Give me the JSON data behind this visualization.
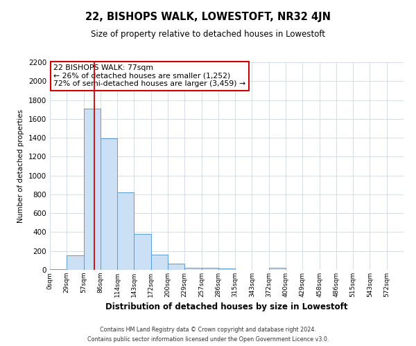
{
  "title": "22, BISHOPS WALK, LOWESTOFT, NR32 4JN",
  "subtitle": "Size of property relative to detached houses in Lowestoft",
  "xlabel": "Distribution of detached houses by size in Lowestoft",
  "ylabel": "Number of detached properties",
  "bin_labels": [
    "0sqm",
    "29sqm",
    "57sqm",
    "86sqm",
    "114sqm",
    "143sqm",
    "172sqm",
    "200sqm",
    "229sqm",
    "257sqm",
    "286sqm",
    "315sqm",
    "343sqm",
    "372sqm",
    "400sqm",
    "429sqm",
    "458sqm",
    "486sqm",
    "515sqm",
    "543sqm",
    "572sqm"
  ],
  "bar_heights": [
    10,
    155,
    1710,
    1390,
    820,
    385,
    160,
    65,
    25,
    20,
    18,
    0,
    0,
    20,
    0,
    0,
    0,
    0,
    0,
    0,
    0
  ],
  "bar_color": "#cce0f5",
  "bar_edge_color": "#5b9bd5",
  "vline_x": 77,
  "vline_color": "#cc0000",
  "ylim": [
    0,
    2200
  ],
  "yticks": [
    0,
    200,
    400,
    600,
    800,
    1000,
    1200,
    1400,
    1600,
    1800,
    2000,
    2200
  ],
  "annotation_title": "22 BISHOPS WALK: 77sqm",
  "annotation_line1": "← 26% of detached houses are smaller (1,252)",
  "annotation_line2": "72% of semi-detached houses are larger (3,459) →",
  "annotation_box_color": "#ffffff",
  "annotation_box_edge": "#cc0000",
  "footer_line1": "Contains HM Land Registry data © Crown copyright and database right 2024.",
  "footer_line2": "Contains public sector information licensed under the Open Government Licence v3.0.",
  "bin_width": 29,
  "background_color": "#ffffff",
  "grid_color": "#c8d8ea"
}
